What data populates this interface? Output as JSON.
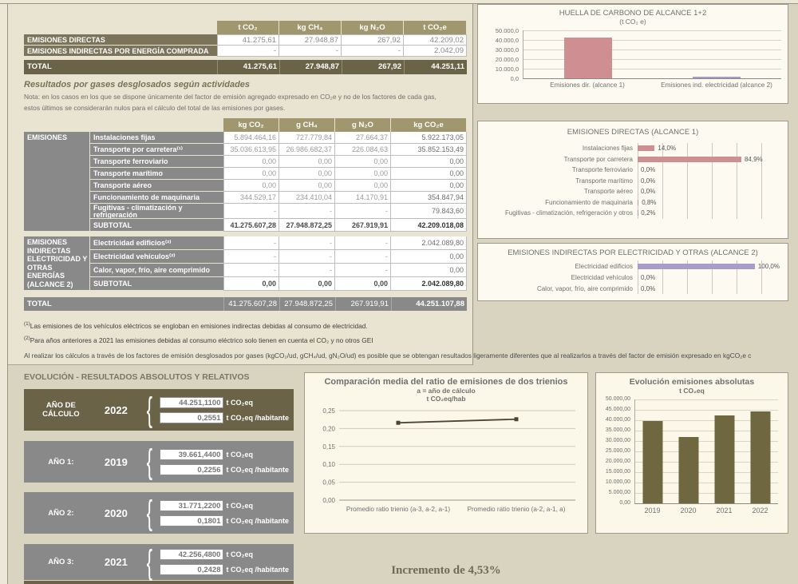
{
  "summary_table": {
    "headers": [
      "t CO₂",
      "kg CH₄",
      "kg N₂O",
      "t CO₂e"
    ],
    "rows": [
      {
        "label": "EMISIONES DIRECTAS",
        "values": [
          "41.275,61",
          "27.948,87",
          "267,92",
          "42.209,02"
        ]
      },
      {
        "label": "EMISIONES INDIRECTAS POR ENERGÍA COMPRADA",
        "values": [
          "-",
          "-",
          "-",
          "2.042,09"
        ]
      }
    ],
    "total": {
      "label": "TOTAL",
      "values": [
        "41.275,61",
        "27.948,87",
        "267,92",
        "44.251,11"
      ]
    }
  },
  "gases": {
    "title": "Resultados por gases desglosados según actividades",
    "note1": "Nota: en los casos en los que se dispone únicamente del factor de emisión agregado expresado en CO₂e y no de los factores de cada gas,",
    "note2": "estos últimos se considerarán nulos para el cálculo del total de las emisiones por gases.",
    "headers": [
      "kg CO₂",
      "g CH₄",
      "g N₂O",
      "kg CO₂e"
    ],
    "direct": {
      "group": "EMISIONES",
      "rows": [
        {
          "label": "Instalaciones fijas",
          "values": [
            "5.894.464,16",
            "727.779,84",
            "27.664,37",
            "5.922.173,05"
          ]
        },
        {
          "label": "Transporte por carretera⁽¹⁾",
          "values": [
            "35.036.613,95",
            "26.986.682,37",
            "226.084,63",
            "35.852.153,49"
          ]
        },
        {
          "label": "Transporte ferroviario",
          "values": [
            "0,00",
            "0,00",
            "0,00",
            "0,00"
          ]
        },
        {
          "label": "Transporte marítimo",
          "values": [
            "0,00",
            "0,00",
            "0,00",
            "0,00"
          ]
        },
        {
          "label": "Transporte aéreo",
          "values": [
            "0,00",
            "0,00",
            "0,00",
            "0,00"
          ]
        },
        {
          "label": "Funcionamiento de maquinaria",
          "values": [
            "344.529,17",
            "234.410,04",
            "14.170,91",
            "354.847,94"
          ]
        },
        {
          "label": "Fugitivas - climatización y refrigeración",
          "values": [
            "-",
            "-",
            "-",
            "79.843,60"
          ]
        }
      ],
      "subtotal": {
        "label": "SUBTOTAL",
        "values": [
          "41.275.607,28",
          "27.948.872,25",
          "267.919,91",
          "42.209.018,08"
        ]
      }
    },
    "indirect": {
      "group": "EMISIONES INDIRECTAS ELECTRICIDAD Y OTRAS ENERGÍAS (ALCANCE 2)",
      "rows": [
        {
          "label": "Electricidad edificios⁽²⁾",
          "values": [
            "-",
            "-",
            "-",
            "2.042.089,80"
          ]
        },
        {
          "label": "Electricidad vehículos⁽²⁾",
          "values": [
            "-",
            "-",
            "-",
            "0,00"
          ]
        },
        {
          "label": "Calor, vapor, frío, aire comprimido",
          "values": [
            "-",
            "-",
            "-",
            "0,00"
          ]
        }
      ],
      "subtotal": {
        "label": "SUBTOTAL",
        "values": [
          "0,00",
          "0,00",
          "0,00",
          "2.042.089,80"
        ]
      }
    },
    "total": {
      "label": "TOTAL",
      "values": [
        "41.275.607,28",
        "27.948.872,25",
        "267.919,91",
        "44.251.107,88"
      ]
    }
  },
  "footnotes": [
    {
      "marker": "(1)",
      "text": "Las emisiones de los vehículos eléctricos se engloban en emisiones indirectas debidas al consumo de electricidad."
    },
    {
      "marker": "(2)",
      "text": "Para años anteriores a 2021 las emisiones debidas al consumo eléctrico solo tienen en cuenta el CO₂ y no otros GEI"
    },
    {
      "marker": "",
      "text": "Al realizar los cálculos a través de los factores de emisión desglosados por gases (kgCO₂/ud, gCH₄/ud, gN₂O/ud) es posible que se obtengan resultados ligeramente diferentes que al realizarlos a través del factor de emisión expresado en kgCO₂e c"
    }
  ],
  "evolution": {
    "title": "EVOLUCIÓN - RESULTADOS ABSOLUTOS Y RELATIVOS",
    "boxes": [
      {
        "label": "AÑO DE CÁLCULO",
        "year": "2022",
        "abs": "44.251,1100",
        "abs_unit": "t CO₂eq",
        "rel": "0,2551",
        "rel_unit": "t CO₂eq /habitante",
        "variant": "olive"
      },
      {
        "label": "AÑO 1:",
        "year": "2019",
        "abs": "39.661,4400",
        "abs_unit": "t CO₂eq",
        "rel": "0,2256",
        "rel_unit": "t CO₂eq /habitante",
        "variant": "gray"
      },
      {
        "label": "AÑO 2:",
        "year": "2020",
        "abs": "31.771,2200",
        "abs_unit": "t CO₂eq",
        "rel": "0,1801",
        "rel_unit": "t CO₂eq /habitante",
        "variant": "gray"
      },
      {
        "label": "AÑO 3:",
        "year": "2021",
        "abs": "42.256,4800",
        "abs_unit": "t CO₂eq",
        "rel": "0,2428",
        "rel_unit": "t CO₂eq /habitante",
        "variant": "gray"
      }
    ],
    "increment": "Incremento de  4,53%"
  },
  "colors": {
    "scope1_bar": "#cf8e91",
    "scope2_bar": "#a79dc8",
    "olive_bar": "#6f673f",
    "line": "#4b4631",
    "dark_olive": "#6b6347",
    "gray_row": "#898989"
  },
  "chart_data": [
    {
      "id": "huella",
      "type": "bar",
      "title": "HUELLA DE CARBONO DE ALCANCE 1+2",
      "subtitle": "(t CO₂ e)",
      "categories": [
        "Emisiones dir. (alcance 1)",
        "Emisiones ind. electricidad (alcance 2)"
      ],
      "values": [
        42209.02,
        2042.09
      ],
      "bar_colors": [
        "#cf8e91",
        "#a79dc8"
      ],
      "ylim": [
        0,
        50000
      ],
      "grid": true,
      "yticks": [
        "50.000,0",
        "40.000,0",
        "30.000,0",
        "20.000,0",
        "10.000,0",
        "0,0"
      ]
    },
    {
      "id": "alcance1",
      "type": "bar",
      "orientation": "horizontal",
      "title": "EMISIONES DIRECTAS (ALCANCE 1)",
      "categories": [
        "Instalaciones fijas",
        "Transporte por carretera",
        "Transporte ferroviario",
        "Transporte marítimo",
        "Transporte aéreo",
        "Funcionamiento de maquinaria",
        "Fugitivas - climatización, refrigeración y otros"
      ],
      "values": [
        14.0,
        84.9,
        0.0,
        0.0,
        0.0,
        0.8,
        0.2
      ],
      "value_labels": [
        "14,0%",
        "84,9%",
        "0,0%",
        "0,0%",
        "0,0%",
        "0,8%",
        "0,2%"
      ],
      "xlim": [
        0,
        100
      ],
      "grid": true,
      "bar_color": "#cf8e91"
    },
    {
      "id": "alcance2",
      "type": "bar",
      "orientation": "horizontal",
      "title": "EMISIONES INDIRECTAS POR ELECTRICIDAD Y OTRAS (ALCANCE 2)",
      "categories": [
        "Electricidad edificios",
        "Electricidad vehículos",
        "Calor, vapor, frío, aire comprimido"
      ],
      "values": [
        100.0,
        0.0,
        0.0
      ],
      "value_labels": [
        "100,0%",
        "0,0%",
        "0,0%"
      ],
      "xlim": [
        0,
        100
      ],
      "grid": true,
      "bar_color": "#a79dc8"
    },
    {
      "id": "trienios",
      "type": "line",
      "title": "Comparación media del ratio de emisiones de dos trienios",
      "subtitle": "a = año de cálculo",
      "unit": "t CO₂eq/hab",
      "categories": [
        "Promedio ratio trienio (a-3, a-2, a-1)",
        "Promedio ratio trienio (a-2, a-1, a)"
      ],
      "values": [
        0.216,
        0.226
      ],
      "ylim": [
        0,
        0.25
      ],
      "grid": true,
      "line_color": "#4b4631",
      "yticks": [
        "0,25",
        "0,20",
        "0,15",
        "0,10",
        "0,05",
        "0,00"
      ]
    },
    {
      "id": "evolucion",
      "type": "bar",
      "title": "Evolución emisiones absolutas",
      "subtitle": "t CO₂eq",
      "categories": [
        "2019",
        "2020",
        "2021",
        "2022"
      ],
      "values": [
        39661.44,
        31771.22,
        42256.48,
        44251.11
      ],
      "bar_color": "#6f673f",
      "ylim": [
        0,
        50000
      ],
      "grid": true,
      "yticks": [
        "50.000,00",
        "45.000,00",
        "40.000,00",
        "35.000,00",
        "30.000,00",
        "25.000,00",
        "20.000,00",
        "15.000,00",
        "10.000,00",
        "5.000,00",
        "0,00"
      ]
    }
  ]
}
